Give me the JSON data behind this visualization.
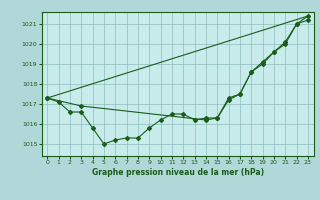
{
  "background_color": "#b0d8d8",
  "plot_bg_color": "#c8ecec",
  "grid_color": "#90bcbc",
  "line_color": "#1a5c1a",
  "xlabel": "Graphe pression niveau de la mer (hPa)",
  "ylim": [
    1014.4,
    1021.6
  ],
  "xlim": [
    -0.5,
    23.5
  ],
  "yticks": [
    1015,
    1016,
    1017,
    1018,
    1019,
    1020,
    1021
  ],
  "xticks": [
    0,
    1,
    2,
    3,
    4,
    5,
    6,
    7,
    8,
    9,
    10,
    11,
    12,
    13,
    14,
    15,
    16,
    17,
    18,
    19,
    20,
    21,
    22,
    23
  ],
  "series1_x": [
    0,
    1,
    2,
    3,
    4,
    5,
    6,
    7,
    8,
    9,
    10,
    11,
    12,
    13,
    14,
    15,
    16,
    17,
    18,
    19,
    20,
    21,
    22,
    23
  ],
  "series1_y": [
    1017.3,
    1017.1,
    1016.6,
    1016.6,
    1015.8,
    1015.0,
    1015.2,
    1015.3,
    1015.3,
    1015.8,
    1016.2,
    1016.5,
    1016.5,
    1016.2,
    1016.3,
    1016.3,
    1017.2,
    1017.5,
    1018.6,
    1019.1,
    1019.6,
    1020.0,
    1021.0,
    1021.2
  ],
  "series2_x": [
    0,
    3,
    14,
    15,
    16,
    17,
    18,
    19,
    20,
    21,
    22,
    23
  ],
  "series2_y": [
    1017.3,
    1016.9,
    1016.2,
    1016.3,
    1017.3,
    1017.5,
    1018.6,
    1019.0,
    1019.6,
    1020.1,
    1021.0,
    1021.4
  ],
  "series3_x": [
    0,
    23
  ],
  "series3_y": [
    1017.3,
    1021.4
  ],
  "figsize": [
    3.2,
    2.0
  ],
  "dpi": 100
}
